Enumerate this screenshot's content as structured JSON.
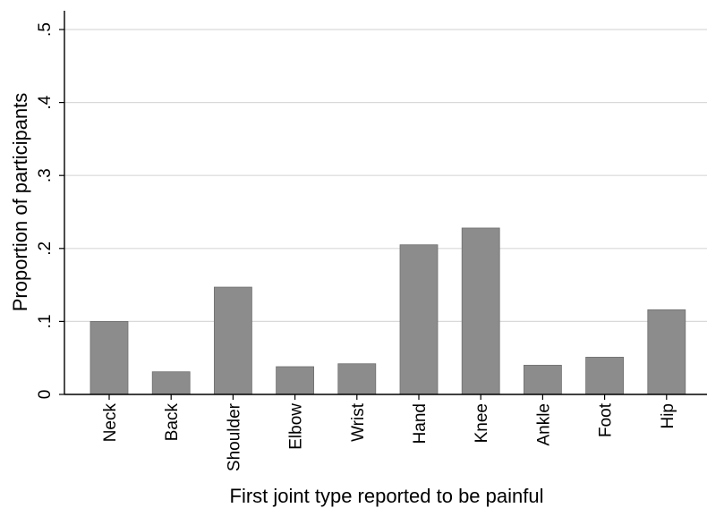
{
  "chart_data": {
    "type": "bar",
    "categories": [
      "Neck",
      "Back",
      "Shoulder",
      "Elbow",
      "Wrist",
      "Hand",
      "Knee",
      "Ankle",
      "Foot",
      "Hip"
    ],
    "values": [
      0.1,
      0.031,
      0.147,
      0.038,
      0.042,
      0.205,
      0.228,
      0.04,
      0.051,
      0.116
    ],
    "title": "",
    "xlabel": "First joint type reported to be painful",
    "ylabel": "Proportion of participants",
    "ylim": [
      0,
      0.5
    ],
    "yticks": [
      0,
      0.1,
      0.2,
      0.3,
      0.4,
      0.5
    ],
    "ytick_labels": [
      "0",
      ".1",
      ".2",
      ".3",
      ".4",
      ".5"
    ],
    "grid": true,
    "bar_color": "#8c8c8c",
    "grid_color": "#d9d9d9"
  }
}
